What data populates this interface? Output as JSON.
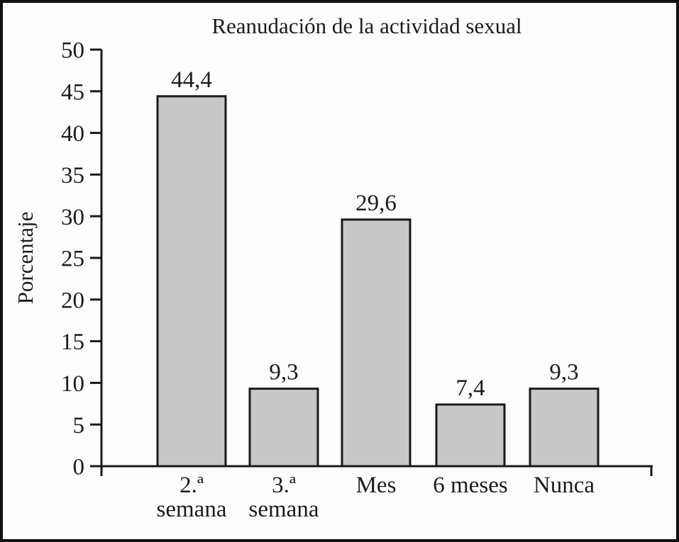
{
  "chart_data": {
    "type": "bar",
    "title": "Reanudación de la actividad sexual",
    "ylabel": "Porcentaje",
    "xlabel": "",
    "categories": [
      "2.ª semana",
      "3.ª semana",
      "Mes",
      "6 meses",
      "Nunca"
    ],
    "category_lines": [
      [
        "2.ª",
        "semana"
      ],
      [
        "3.ª",
        "semana"
      ],
      [
        "Mes"
      ],
      [
        "6 meses"
      ],
      [
        "Nunca"
      ]
    ],
    "values": [
      44.4,
      9.3,
      29.6,
      7.4,
      9.3
    ],
    "value_labels": [
      "44,4",
      "9,3",
      "29,6",
      "7,4",
      "9,3"
    ],
    "ylim": [
      0,
      50
    ],
    "ytick_step": 5,
    "ytick_labels": [
      "0",
      "5",
      "10",
      "15",
      "20",
      "25",
      "30",
      "35",
      "40",
      "45",
      "50"
    ],
    "grid": false,
    "legend": false,
    "colors": {
      "bar_fill": "#c8c8c8",
      "bar_stroke": "#1a1a1a",
      "axis": "#1a1a1a",
      "text": "#1c1c1c",
      "background": "#fdfdfd",
      "frame_border": "#111111"
    }
  }
}
